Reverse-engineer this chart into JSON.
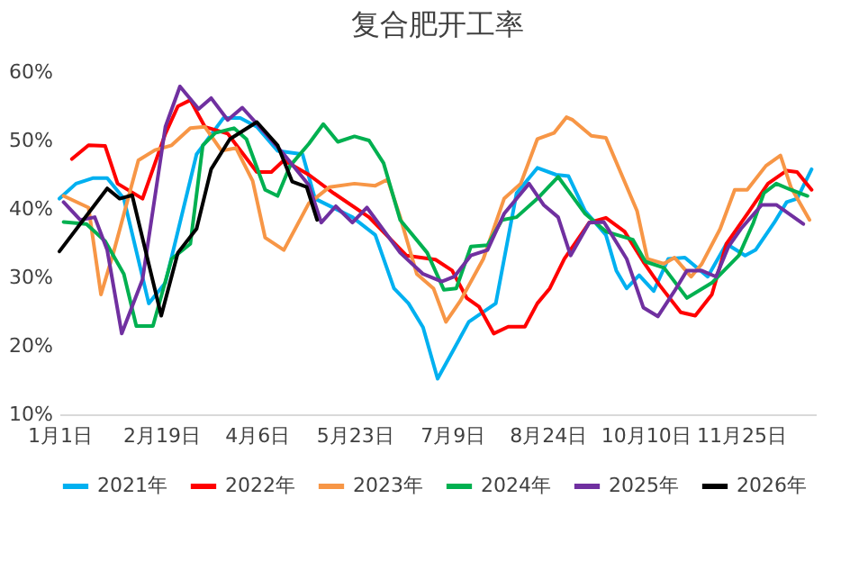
{
  "chart_data": {
    "type": "line",
    "title": "复合肥开工率",
    "xlim": [
      "--01-01",
      "--12-31"
    ],
    "xticks": [
      {
        "value": "--01-01",
        "label": "1月1日"
      },
      {
        "value": "--02-19",
        "label": "2月19日"
      },
      {
        "value": "--04-06",
        "label": "4月6日"
      },
      {
        "value": "--05-23",
        "label": "5月23日"
      },
      {
        "value": "--07-09",
        "label": "7月9日"
      },
      {
        "value": "--08-24",
        "label": "8月24日"
      },
      {
        "value": "--10-10",
        "label": "10月10日"
      },
      {
        "value": "--11-25",
        "label": "11月25日"
      }
    ],
    "ylim": [
      10,
      60
    ],
    "yticks": [
      {
        "value": 10,
        "label": "10%"
      },
      {
        "value": 20,
        "label": "20%"
      },
      {
        "value": 30,
        "label": "30%"
      },
      {
        "value": 40,
        "label": "40%"
      },
      {
        "value": 50,
        "label": "50%"
      },
      {
        "value": 60,
        "label": "60%"
      }
    ],
    "grid": false,
    "legend": "bottom",
    "series": [
      {
        "name": "2021年",
        "color": "#00b0f0",
        "x": [
          "--01-01",
          "--01-09",
          "--01-17",
          "--01-24",
          "--02-01",
          "--02-13",
          "--02-21",
          "--03-08",
          "--03-21",
          "--03-29",
          "--04-06",
          "--04-16",
          "--04-28",
          "--05-04",
          "--05-22",
          "--06-02",
          "--06-11",
          "--06-18",
          "--06-25",
          "--07-02",
          "--07-10",
          "--07-17",
          "--07-30",
          "--08-09",
          "--08-19",
          "--08-28",
          "--09-03",
          "--09-11",
          "--09-21",
          "--09-26",
          "--10-01",
          "--10-07",
          "--10-14",
          "--10-21",
          "--10-29",
          "--11-09",
          "--11-18",
          "--11-27",
          "--12-02",
          "--12-11",
          "--12-17",
          "--12-22",
          "--12-29"
        ],
        "values": [
          41.5,
          43.7,
          44.5,
          44.5,
          41.5,
          26.2,
          29.2,
          48,
          53.3,
          53.3,
          52,
          48.5,
          48,
          41.5,
          38.8,
          36.2,
          28.4,
          26.2,
          22.7,
          15.2,
          19.6,
          23.5,
          26.2,
          42.3,
          46,
          45,
          44.8,
          39.7,
          36.2,
          31,
          28.4,
          30.3,
          28,
          32.7,
          32.9,
          30.1,
          34.9,
          33.2,
          34,
          38,
          41,
          41.5,
          45.8
        ]
      },
      {
        "name": "2022年",
        "color": "#ff0000",
        "x": [
          "--01-07",
          "--01-15",
          "--01-23",
          "--01-29",
          "--02-10",
          "--02-21",
          "--02-27",
          "--03-05",
          "--03-12",
          "--03-23",
          "--04-06",
          "--04-13",
          "--04-19",
          "--05-01",
          "--05-13",
          "--05-30",
          "--06-17",
          "--07-01",
          "--07-09",
          "--07-16",
          "--07-22",
          "--07-29",
          "--08-05",
          "--08-13",
          "--08-19",
          "--08-25",
          "--09-01",
          "--09-13",
          "--09-21",
          "--09-30",
          "--10-09",
          "--10-17",
          "--10-27",
          "--11-03",
          "--11-11",
          "--11-18",
          "--11-29",
          "--12-08",
          "--12-17",
          "--12-22",
          "--12-29"
        ],
        "values": [
          47.3,
          49.3,
          49.2,
          43.7,
          41.5,
          51,
          55,
          55.9,
          52,
          51,
          45.4,
          45.4,
          47.1,
          45,
          42.3,
          38.8,
          33.2,
          32.6,
          31,
          27,
          25.7,
          21.8,
          22.8,
          22.8,
          26.2,
          28.4,
          32.7,
          38,
          38.7,
          36.7,
          32.3,
          28.8,
          24.9,
          24.4,
          27.5,
          34.9,
          39.7,
          43.7,
          45.6,
          45.4,
          42.8
        ]
      },
      {
        "name": "2023年",
        "color": "#f79646",
        "x": [
          "--01-03",
          "--01-15",
          "--01-21",
          "--01-27",
          "--02-08",
          "--02-16",
          "--02-24",
          "--03-05",
          "--03-12",
          "--03-20",
          "--03-27",
          "--04-04",
          "--04-10",
          "--04-19",
          "--05-01",
          "--05-11",
          "--05-23",
          "--06-02",
          "--06-08",
          "--06-14",
          "--06-22",
          "--06-30",
          "--07-06",
          "--07-13",
          "--07-24",
          "--08-03",
          "--08-11",
          "--08-19",
          "--08-27",
          "--09-02",
          "--09-05",
          "--09-14",
          "--09-21",
          "--10-06",
          "--10-11",
          "--10-19",
          "--10-24",
          "--11-01",
          "--11-06",
          "--11-15",
          "--11-22",
          "--11-28",
          "--12-07",
          "--12-14",
          "--12-19",
          "--12-28"
        ],
        "values": [
          41.9,
          40.2,
          27.5,
          33.6,
          47.1,
          48.6,
          49.3,
          51.8,
          52,
          48.5,
          48.9,
          44.1,
          35.8,
          34,
          40.8,
          43.2,
          43.7,
          43.4,
          44.3,
          38.8,
          30.5,
          28.4,
          23.5,
          26.6,
          32.7,
          41.5,
          43.7,
          50.2,
          51.1,
          53.4,
          53,
          50.7,
          50.4,
          39.7,
          32.7,
          32,
          32.9,
          30.1,
          31.9,
          37.1,
          42.8,
          42.8,
          46.3,
          47.8,
          43.2,
          38.4
        ]
      },
      {
        "name": "2024年",
        "color": "#00b050",
        "x": [
          "--01-03",
          "--01-14",
          "--01-23",
          "--02-01",
          "--02-07",
          "--02-15",
          "--02-24",
          "--03-05",
          "--03-11",
          "--03-17",
          "--03-26",
          "--04-01",
          "--04-10",
          "--04-16",
          "--04-22",
          "--05-01",
          "--05-08",
          "--05-15",
          "--05-23",
          "--05-30",
          "--06-06",
          "--06-14",
          "--06-27",
          "--07-05",
          "--07-11",
          "--07-18",
          "--07-26",
          "--08-02",
          "--08-09",
          "--08-19",
          "--08-29",
          "--09-11",
          "--09-21",
          "--10-04",
          "--10-10",
          "--10-19",
          "--10-30",
          "--11-11",
          "--11-24",
          "--12-01",
          "--12-06",
          "--12-12",
          "--12-19",
          "--12-27"
        ],
        "values": [
          38.1,
          37.8,
          35.3,
          30.5,
          22.9,
          22.9,
          32.7,
          34.9,
          49.3,
          51.1,
          51.8,
          50.2,
          42.8,
          41.9,
          46.3,
          49.5,
          52.4,
          49.8,
          50.6,
          50,
          46.7,
          38.4,
          33.6,
          28.2,
          28.4,
          34.5,
          34.7,
          38.4,
          38.8,
          41.5,
          44.7,
          39.3,
          36.7,
          35.5,
          32.3,
          31.4,
          27,
          29.2,
          33.2,
          38,
          42.3,
          43.7,
          42.8,
          41.9
        ]
      },
      {
        "name": "2025年",
        "color": "#7030a0",
        "x": [
          "--01-03",
          "--01-11",
          "--01-18",
          "--01-24",
          "--01-31",
          "--02-10",
          "--02-21",
          "--02-28",
          "--03-09",
          "--03-15",
          "--03-23",
          "--03-30",
          "--04-10",
          "--04-19",
          "--05-01",
          "--05-07",
          "--05-14",
          "--05-22",
          "--05-29",
          "--06-14",
          "--06-25",
          "--07-04",
          "--07-10",
          "--07-18",
          "--07-26",
          "--08-03",
          "--08-15",
          "--08-22",
          "--08-29",
          "--09-04",
          "--09-13",
          "--09-20",
          "--10-01",
          "--10-09",
          "--10-16",
          "--10-24",
          "--10-30",
          "--11-06",
          "--11-13",
          "--11-19",
          "--11-25",
          "--12-05",
          "--12-12",
          "--12-25"
        ],
        "values": [
          41,
          38.4,
          38.8,
          34,
          21.8,
          29.7,
          52,
          57.9,
          54.6,
          56.2,
          53,
          54.8,
          51.1,
          48,
          43.5,
          38,
          40.4,
          38,
          40.2,
          33.6,
          30.5,
          29.4,
          30.1,
          33.2,
          34,
          39.3,
          43.7,
          40.6,
          38.8,
          33.2,
          38,
          38.1,
          32.7,
          25.6,
          24.3,
          28,
          31,
          31,
          30.1,
          34.5,
          37.1,
          40.6,
          40.6,
          37.8
        ]
      },
      {
        "name": "2026年",
        "color": "#000000",
        "x": [
          "--01-01",
          "--01-24",
          "--01-30",
          "--02-05",
          "--02-19",
          "--02-27",
          "--03-08",
          "--03-15",
          "--03-24",
          "--04-06",
          "--04-16",
          "--04-23",
          "--04-30",
          "--05-05"
        ],
        "values": [
          33.8,
          43,
          41.5,
          42,
          24.4,
          33.6,
          37.1,
          45.8,
          50.2,
          52.7,
          49.3,
          44,
          43.2,
          38.4
        ]
      }
    ]
  }
}
